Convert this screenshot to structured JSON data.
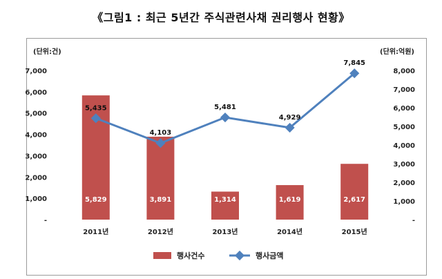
{
  "title": "《그림1 : 최근 5년간 주식관련사채 권리행사 현황》",
  "chart_data": {
    "type": "bar",
    "categories": [
      "2011년",
      "2012년",
      "2013년",
      "2014년",
      "2015년"
    ],
    "series": [
      {
        "name": "행사건수",
        "type": "bar",
        "axis": "left",
        "color": "#c0504d",
        "values": [
          5829,
          3891,
          1314,
          1619,
          2617
        ],
        "labels": [
          "5,829",
          "3,891",
          "1,314",
          "1,619",
          "2,617"
        ]
      },
      {
        "name": "행사금액",
        "type": "line",
        "axis": "right",
        "color": "#4f81bd",
        "values": [
          5435,
          4103,
          5481,
          4929,
          7845
        ],
        "labels": [
          "5,435",
          "4,103",
          "5,481",
          "4,929",
          "7,845"
        ]
      }
    ],
    "left_axis": {
      "unit": "(단위:건)",
      "range": [
        0,
        7000
      ],
      "ticks": [
        "-",
        "1,000",
        "2,000",
        "3,000",
        "4,000",
        "5,000",
        "6,000",
        "7,000"
      ]
    },
    "right_axis": {
      "unit": "(단위:억원)",
      "range": [
        0,
        8000
      ],
      "ticks": [
        "-",
        "1,000",
        "2,000",
        "3,000",
        "4,000",
        "5,000",
        "6,000",
        "7,000",
        "8,000"
      ]
    },
    "grid": false,
    "legend_position": "bottom"
  }
}
